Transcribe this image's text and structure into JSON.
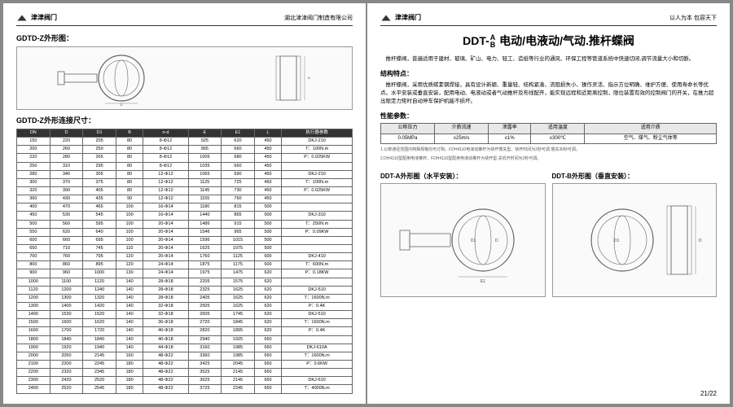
{
  "brand": "津津阀门",
  "company_right": "湖北津津阀门制造有限公司",
  "slogan": "以人为本  包容天下",
  "left": {
    "title1": "GDTD-Z外形图：",
    "title2": "GDTD-Z外形连接尺寸：",
    "cols": [
      "DN",
      "D",
      "D1",
      "B",
      "n-d",
      "E",
      "E1",
      "L",
      "执行器参数"
    ],
    "rows": [
      [
        "150",
        "220",
        "205",
        "80",
        "8-Φ12",
        "925",
        "620",
        "450",
        "DKJ-210"
      ],
      [
        "200",
        "260",
        "250",
        "80",
        "8-Φ12",
        "965",
        "660",
        "450",
        "T：100N.m"
      ],
      [
        "220",
        "280",
        "265",
        "80",
        "8-Φ12",
        "1005",
        "680",
        "450",
        "P：0.025KW"
      ],
      [
        "250",
        "310",
        "295",
        "80",
        "8-Φ12",
        "1035",
        "660",
        "450",
        ""
      ],
      [
        "280",
        "340",
        "305",
        "80",
        "12-Φ12",
        "1065",
        "690",
        "450",
        "DKJ-210"
      ],
      [
        "300",
        "370",
        "375",
        "80",
        "12-Φ12",
        "1125",
        "725",
        "450",
        "T：100N.m"
      ],
      [
        "320",
        "390",
        "405",
        "80",
        "12-Φ12",
        "1145",
        "730",
        "450",
        "P：0.025KW"
      ],
      [
        "360",
        "430",
        "435",
        "90",
        "12-Φ12",
        "1155",
        "760",
        "450",
        ""
      ],
      [
        "400",
        "470",
        "465",
        "100",
        "16-Φ14",
        "1180",
        "815",
        "500",
        ""
      ],
      [
        "450",
        "530",
        "545",
        "100",
        "16-Φ14",
        "1440",
        "865",
        "500",
        "DKJ-310"
      ],
      [
        "500",
        "560",
        "595",
        "100",
        "20-Φ14",
        "1486",
        "915",
        "500",
        "T：250N.m"
      ],
      [
        "550",
        "620",
        "640",
        "100",
        "20-Φ14",
        "1546",
        "965",
        "500",
        "P：0.09KW"
      ],
      [
        "600",
        "660",
        "695",
        "100",
        "20-Φ14",
        "1596",
        "1015",
        "500",
        ""
      ],
      [
        "650",
        "710",
        "745",
        "110",
        "20-Φ14",
        "1625",
        "1075",
        "500",
        ""
      ],
      [
        "700",
        "760",
        "795",
        "120",
        "20-Φ14",
        "1760",
        "1125",
        "600",
        "DKJ-410"
      ],
      [
        "800",
        "860",
        "895",
        "120",
        "24-Φ14",
        "1875",
        "1175",
        "600",
        "T：600N.m"
      ],
      [
        "900",
        "960",
        "1000",
        "130",
        "24-Φ14",
        "1975",
        "1475",
        "620",
        "P：0.18KW"
      ],
      [
        "1000",
        "1100",
        "1120",
        "140",
        "28-Φ18",
        "2205",
        "1575",
        "620",
        ""
      ],
      [
        "1120",
        "1200",
        "1240",
        "140",
        "28-Φ18",
        "2325",
        "1625",
        "620",
        "DKJ-510"
      ],
      [
        "1200",
        "1300",
        "1320",
        "140",
        "28-Φ18",
        "2405",
        "1625",
        "620",
        "T：1600N.m"
      ],
      [
        "1300",
        "1400",
        "1420",
        "140",
        "32-Φ18",
        "2505",
        "1625",
        "620",
        "P：0.4K"
      ],
      [
        "1400",
        "1530",
        "1520",
        "140",
        "32-Φ18",
        "2605",
        "1745",
        "620",
        "DKJ-510"
      ],
      [
        "1500",
        "1600",
        "1620",
        "140",
        "36-Φ18",
        "2720",
        "1845",
        "620",
        "T：1600N.m"
      ],
      [
        "1600",
        "1700",
        "1720",
        "140",
        "40-Φ18",
        "2820",
        "1895",
        "620",
        "P：0.4K"
      ],
      [
        "1800",
        "1840",
        "1840",
        "140",
        "40-Φ18",
        "2940",
        "1925",
        "650",
        ""
      ],
      [
        "1900",
        "1920",
        "1940",
        "140",
        "44-Φ18",
        "3160",
        "1985",
        "650",
        "DKJ-610A"
      ],
      [
        "2000",
        "2050",
        "2145",
        "160",
        "48-Φ22",
        "3360",
        "1985",
        "650",
        "T：1600N.m"
      ],
      [
        "2100",
        "2200",
        "2245",
        "180",
        "48-Φ22",
        "3425",
        "2045",
        "650",
        "P：0.6KW"
      ],
      [
        "2200",
        "2320",
        "2345",
        "180",
        "48-Φ22",
        "3525",
        "2145",
        "650",
        ""
      ],
      [
        "2300",
        "2420",
        "2520",
        "180",
        "48-Φ22",
        "3625",
        "2145",
        "650",
        "DKJ-610"
      ],
      [
        "2400",
        "2520",
        "2545",
        "180",
        "48-Φ22",
        "3725",
        "2245",
        "650",
        "T：4000N.m"
      ]
    ]
  },
  "right": {
    "title_pre": "DDT-",
    "title_a": "A",
    "title_b": "B",
    "title_post": " 电动/电液动/气动.推杆蝶阀",
    "para1": "推杆蝶阀，普遍适用于建材、玻璃、矿山、电力、轻工、造纸等行业的通风、环保工程等管道系统中快速切闭,调节流量大小和切断。",
    "h1": "结构特点：",
    "para2": "推杆蝶阀，采用优质碳素钢焊接，具有设计新颖、重量轻、结构紧凑、流阻损失小、操作灵活、指示方位明确、维护方便、使用寿命长等优点。水平安装或垂直安装，配用电动、电液动或者气动推杆及布线配开，能实现远程和近距离控制，限位装置有效的控制阀门的开关，在推力超出限定力矩时自动停车保护机能不损坏。",
    "h2": "性能参数：",
    "spec_cols": [
      "公称压力",
      "介质流速",
      "泄露率",
      "适用温度",
      "适用介质"
    ],
    "spec_row": [
      "0.05MPa",
      "≤25m/s",
      "≤1%",
      "≤300℃",
      "空气、煤气、粉尘气体等"
    ],
    "note1": "1.公称通径范围内特殊规格均可订购。FDH4110电液动推杆为快开慢关型。快开时间为2秒可调,慢关30秒可调。",
    "note2": "2.DH4110型配用电液推杆。FDH4110型配用电液动推杆为快开型,关机开时间为2秒可调。",
    "diag_a": "DDT-A外形图（水平安装）：",
    "diag_b": "DDT-B外形图（垂直安装）：",
    "pagenum": "21/22"
  }
}
